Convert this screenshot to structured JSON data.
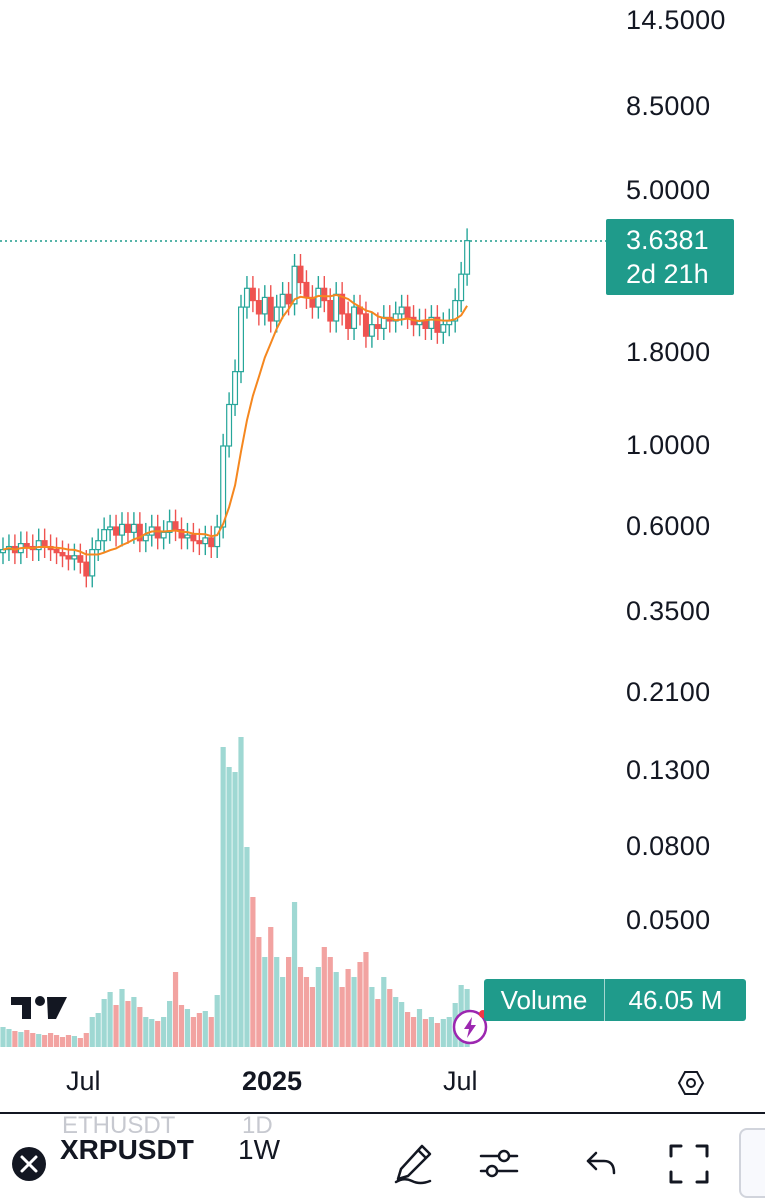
{
  "price_axis": [
    "14.5000",
    "8.5000",
    "5.0000",
    "1.8000",
    "1.0000",
    "0.6000",
    "0.3500",
    "0.2100",
    "0.1300",
    "0.0800",
    "0.0500"
  ],
  "last_price": {
    "value": "3.6381",
    "countdown": "2d 21h"
  },
  "volume_indicator": {
    "label": "Volume",
    "value": "46.05 M"
  },
  "time_axis": [
    "Jul",
    "2025",
    "Jul"
  ],
  "toolbar": {
    "symbol": "XRPUSDT",
    "interval": "1W",
    "ghost_symbol_above": "ETHUSDT",
    "ghost_interval_above": "1D"
  },
  "colors": {
    "up": "#26a69a",
    "down": "#ef5350",
    "ma": "#f5871f",
    "accent": "#1f9b8b",
    "up_vol": "#9fd8d3",
    "down_vol": "#f2a3a1"
  },
  "icons": [
    "tradingview-logo-icon",
    "flash-icon",
    "settings-hexagon-icon",
    "close-circle-icon",
    "pencil-draw-icon",
    "sliders-icon",
    "undo-icon",
    "fullscreen-icon"
  ]
}
